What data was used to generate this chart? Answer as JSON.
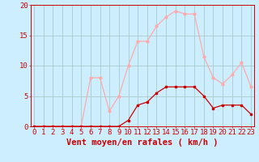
{
  "hours": [
    0,
    1,
    2,
    3,
    4,
    5,
    6,
    7,
    8,
    9,
    10,
    11,
    12,
    13,
    14,
    15,
    16,
    17,
    18,
    19,
    20,
    21,
    22,
    23
  ],
  "vent_moyen": [
    0,
    0,
    0,
    0,
    0,
    0,
    0,
    0,
    0,
    0,
    1,
    3.5,
    4,
    5.5,
    6.5,
    6.5,
    6.5,
    6.5,
    5,
    3,
    3.5,
    3.5,
    3.5,
    2
  ],
  "rafales": [
    0,
    0,
    0,
    0,
    0,
    0,
    8,
    8,
    2.5,
    5,
    10,
    14,
    14,
    16.5,
    18,
    19,
    18.5,
    18.5,
    11.5,
    8,
    7,
    8.5,
    10.5,
    6.5
  ],
  "color_moyen": "#cc0000",
  "color_rafales": "#ffaaaa",
  "bg_color": "#cceeff",
  "grid_color": "#aacccc",
  "xlabel": "Vent moyen/en rafales ( km/h )",
  "ylim": [
    0,
    20
  ],
  "yticks": [
    0,
    5,
    10,
    15,
    20
  ],
  "tick_fontsize": 6.5,
  "label_fontsize": 7.5
}
